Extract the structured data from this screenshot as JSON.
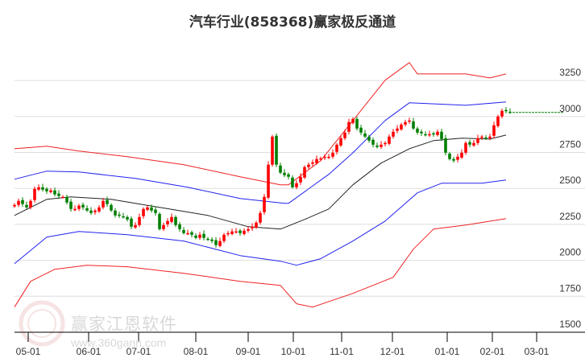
{
  "chart_data": {
    "type": "candlestick-channel",
    "title": "汽车行业(858368)赢家极反通道",
    "ylim": [
      1500,
      3250
    ],
    "yticks": [
      1500,
      1750,
      2000,
      2250,
      2500,
      2750,
      3000,
      3250
    ],
    "xticks": [
      {
        "label": "05-01",
        "index": 3.4
      },
      {
        "label": "06-01",
        "index": 18.4
      },
      {
        "label": "07-01",
        "index": 30.8
      },
      {
        "label": "08-01",
        "index": 45
      },
      {
        "label": "09-01",
        "index": 58
      },
      {
        "label": "10-01",
        "index": 69.2
      },
      {
        "label": "11-01",
        "index": 81.2
      },
      {
        "label": "12-01",
        "index": 93.8
      },
      {
        "label": "01-01",
        "index": 107.4
      },
      {
        "label": "02-01",
        "index": 118.6
      },
      {
        "label": "03-01",
        "index": 129.6
      }
    ],
    "closes": [
      2385,
      2413,
      2391,
      2368,
      2413,
      2497,
      2508,
      2491,
      2480,
      2486,
      2458,
      2447,
      2441,
      2402,
      2357,
      2357,
      2380,
      2368,
      2346,
      2329,
      2346,
      2368,
      2413,
      2391,
      2346,
      2312,
      2312,
      2301,
      2284,
      2234,
      2245,
      2301,
      2357,
      2368,
      2346,
      2329,
      2217,
      2245,
      2273,
      2301,
      2245,
      2217,
      2189,
      2189,
      2178,
      2156,
      2178,
      2156,
      2145,
      2134,
      2106,
      2134,
      2178,
      2189,
      2201,
      2201,
      2189,
      2206,
      2217,
      2234,
      2262,
      2329,
      2441,
      2665,
      2860,
      2665,
      2609,
      2592,
      2581,
      2508,
      2536,
      2581,
      2648,
      2665,
      2681,
      2704,
      2709,
      2720,
      2720,
      2748,
      2804,
      2849,
      2888,
      2961,
      2983,
      2916,
      2888,
      2860,
      2832,
      2804,
      2788,
      2804,
      2816,
      2860,
      2894,
      2916,
      2944,
      2961,
      2972,
      2916,
      2888,
      2883,
      2871,
      2877,
      2877,
      2894,
      2843,
      2748,
      2704,
      2693,
      2720,
      2748,
      2816,
      2804,
      2816,
      2849,
      2860,
      2849,
      2860,
      2939,
      3000,
      3039,
      3039,
      3028
    ],
    "last_price": 3028,
    "series": [
      {
        "name": "middle",
        "color": "#222222",
        "points": [
          [
            0,
            2312
          ],
          [
            8,
            2424
          ],
          [
            14,
            2441
          ],
          [
            24,
            2424
          ],
          [
            36,
            2368
          ],
          [
            48,
            2312
          ],
          [
            58,
            2234
          ],
          [
            66,
            2217
          ],
          [
            72,
            2284
          ],
          [
            78,
            2357
          ],
          [
            84,
            2525
          ],
          [
            91,
            2676
          ],
          [
            98,
            2776
          ],
          [
            104,
            2832
          ],
          [
            111,
            2849
          ],
          [
            118,
            2843
          ],
          [
            122,
            2871
          ]
        ]
      },
      {
        "name": "upper-inner",
        "color": "#2222ee",
        "points": [
          [
            0,
            2564
          ],
          [
            8,
            2620
          ],
          [
            16,
            2614
          ],
          [
            30,
            2570
          ],
          [
            43,
            2508
          ],
          [
            56,
            2430
          ],
          [
            67,
            2396
          ],
          [
            68,
            2396
          ],
          [
            78,
            2598
          ],
          [
            84,
            2748
          ],
          [
            92,
            2972
          ],
          [
            98,
            3095
          ],
          [
            112,
            3078
          ],
          [
            122,
            3101
          ]
        ]
      },
      {
        "name": "lower-inner",
        "color": "#2222ee",
        "points": [
          [
            0,
            1977
          ],
          [
            8,
            2161
          ],
          [
            16,
            2201
          ],
          [
            28,
            2178
          ],
          [
            42,
            2134
          ],
          [
            56,
            2033
          ],
          [
            66,
            1994
          ],
          [
            70,
            1966
          ],
          [
            76,
            2011
          ],
          [
            84,
            2134
          ],
          [
            92,
            2273
          ],
          [
            100,
            2469
          ],
          [
            106,
            2536
          ],
          [
            116,
            2536
          ],
          [
            122,
            2558
          ]
        ]
      },
      {
        "name": "upper-outer",
        "color": "#ee2222",
        "points": [
          [
            0,
            2776
          ],
          [
            8,
            2793
          ],
          [
            16,
            2760
          ],
          [
            28,
            2721
          ],
          [
            42,
            2665
          ],
          [
            56,
            2581
          ],
          [
            66,
            2525
          ],
          [
            68,
            2525
          ],
          [
            76,
            2693
          ],
          [
            84,
            2972
          ],
          [
            92,
            3252
          ],
          [
            98,
            3375
          ],
          [
            100,
            3296
          ],
          [
            112,
            3296
          ],
          [
            118,
            3268
          ],
          [
            122,
            3296
          ]
        ]
      },
      {
        "name": "lower-outer",
        "color": "#ee2222",
        "points": [
          [
            0,
            1675
          ],
          [
            4,
            1854
          ],
          [
            10,
            1938
          ],
          [
            18,
            1966
          ],
          [
            28,
            1955
          ],
          [
            42,
            1910
          ],
          [
            56,
            1854
          ],
          [
            66,
            1826
          ],
          [
            70,
            1698
          ],
          [
            74,
            1675
          ],
          [
            84,
            1770
          ],
          [
            94,
            1882
          ],
          [
            99,
            2078
          ],
          [
            104,
            2217
          ],
          [
            112,
            2245
          ],
          [
            122,
            2290
          ]
        ]
      }
    ],
    "colors": {
      "up": "#ff0000",
      "down": "#008000",
      "grid": "#dddddd",
      "last": "#008000"
    }
  },
  "watermark": {
    "name": "赢家江恩软件",
    "url": "www.360gann.com",
    "seal": "江赢恩家"
  }
}
